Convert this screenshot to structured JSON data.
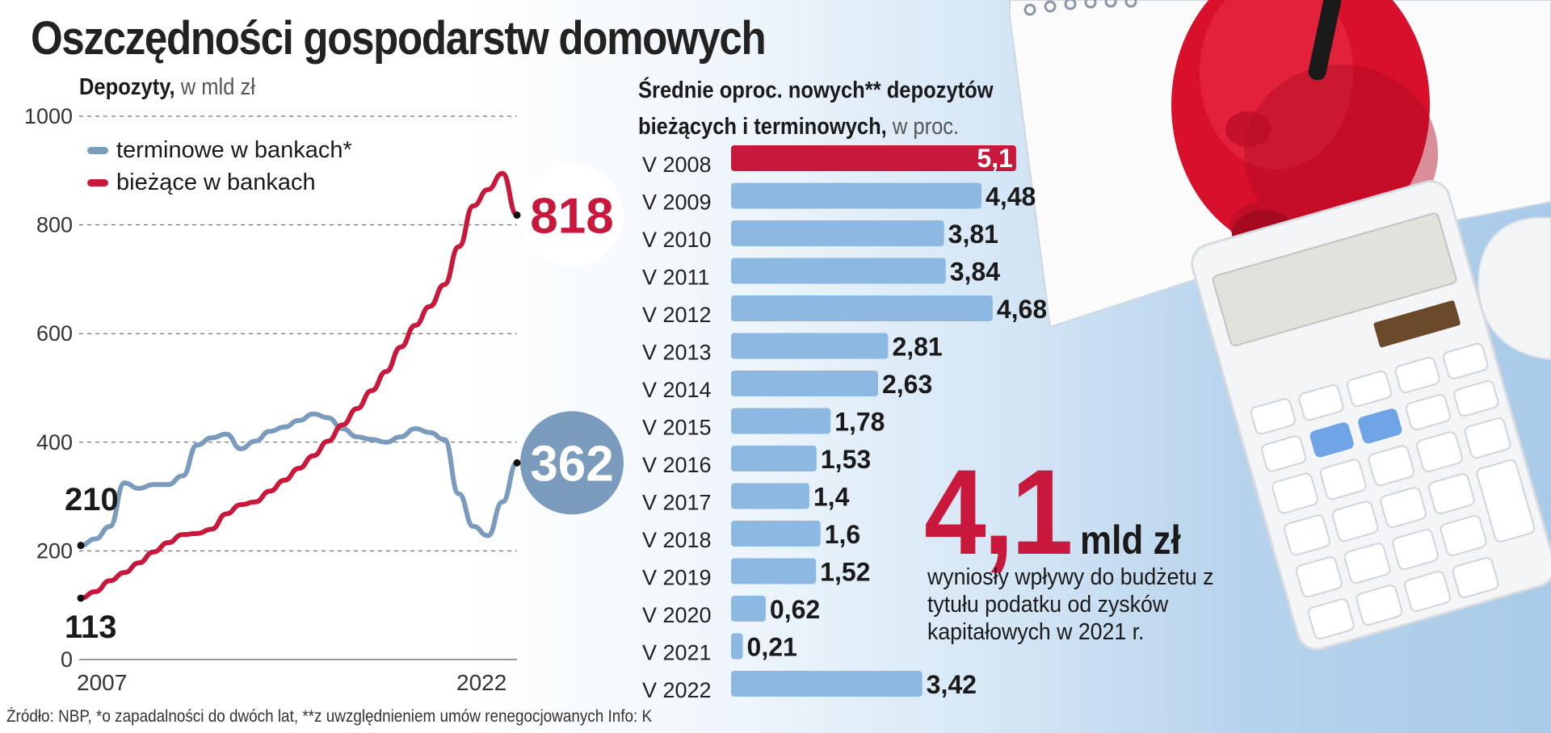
{
  "title": "Oszczędności gospodarstw domowych",
  "line_section": {
    "subtitle_bold": "Depozyty,",
    "subtitle_unit": "w mld zł"
  },
  "bar_section": {
    "title_line1": "Średnie oproc. nowych** depozytów",
    "title_line2_bold": "bieżących i terminowych,",
    "title_line2_unit": "w proc."
  },
  "highlight": {
    "value": "4,1",
    "unit": "mld zł",
    "description": "wyniosły wpływy do budżetu z tytułu podatku od zysków kapitałowych w 2021 r."
  },
  "footer": "Źródło: NBP, *o zapadalności do dwóch lat, **z uwzględnieniem umów renegocjowanych   Info: K",
  "colors": {
    "red": "#c8193d",
    "blue": "#7b9bbd",
    "bar_blue": "#8cb8e2",
    "circle_blue": "#7b9bbd"
  },
  "chart_data": [
    {
      "type": "line",
      "title": "Depozyty",
      "ylabel": "w mld zł",
      "ylim": [
        0,
        1000
      ],
      "yticks": [
        "0",
        "200",
        "400",
        "600",
        "800",
        "1000"
      ],
      "xtick_labels": [
        "2007",
        "2022"
      ],
      "legend_position": "top-left",
      "grid": "horizontal dashed",
      "series": [
        {
          "name": "terminowe w bankach*",
          "color": "#7b9bbd",
          "x": [
            2007.0,
            2007.5,
            2008.0,
            2008.5,
            2009.0,
            2009.5,
            2010.0,
            2010.5,
            2011.0,
            2011.5,
            2012.0,
            2012.5,
            2013.0,
            2013.5,
            2014.0,
            2014.5,
            2015.0,
            2015.5,
            2016.0,
            2016.5,
            2017.0,
            2017.5,
            2018.0,
            2018.5,
            2019.0,
            2019.5,
            2020.0,
            2020.5,
            2021.0,
            2021.5,
            2022.0
          ],
          "values": [
            210,
            222,
            245,
            325,
            315,
            322,
            322,
            338,
            395,
            408,
            415,
            388,
            402,
            420,
            428,
            440,
            452,
            445,
            425,
            410,
            405,
            400,
            410,
            425,
            418,
            405,
            305,
            245,
            228,
            290,
            362
          ],
          "start_label": "210",
          "end_label": "362"
        },
        {
          "name": "bieżące w bankach",
          "color": "#c8193d",
          "x": [
            2007.0,
            2007.5,
            2008.0,
            2008.5,
            2009.0,
            2009.5,
            2010.0,
            2010.5,
            2011.0,
            2011.5,
            2012.0,
            2012.5,
            2013.0,
            2013.5,
            2014.0,
            2014.5,
            2015.0,
            2015.5,
            2016.0,
            2016.5,
            2017.0,
            2017.5,
            2018.0,
            2018.5,
            2019.0,
            2019.5,
            2020.0,
            2020.5,
            2021.0,
            2021.5,
            2022.0
          ],
          "values": [
            113,
            125,
            145,
            160,
            178,
            198,
            215,
            230,
            232,
            240,
            268,
            285,
            290,
            310,
            330,
            352,
            375,
            402,
            432,
            462,
            495,
            530,
            575,
            615,
            650,
            690,
            760,
            835,
            865,
            895,
            818
          ],
          "start_label": "113",
          "end_label": "818"
        }
      ]
    },
    {
      "type": "bar",
      "orientation": "horizontal",
      "title": "Średnie oproc. nowych** depozytów bieżących i terminowych",
      "unit": "w proc.",
      "categories": [
        "V 2008",
        "V 2009",
        "V 2010",
        "V 2011",
        "V 2012",
        "V 2013",
        "V 2014",
        "V 2015",
        "V 2016",
        "V 2017",
        "V 2018",
        "V 2019",
        "V 2020",
        "V 2021",
        "V 2022"
      ],
      "values": [
        5.1,
        4.48,
        3.81,
        3.84,
        4.68,
        2.81,
        2.63,
        1.78,
        1.53,
        1.4,
        1.6,
        1.52,
        0.62,
        0.21,
        3.42
      ],
      "labels": [
        "5,1",
        "4,48",
        "3,81",
        "3,84",
        "4,68",
        "2,81",
        "2,63",
        "1,78",
        "1,53",
        "1,4",
        "1,6",
        "1,52",
        "0,62",
        "0,21",
        "3,42"
      ],
      "highlight_index": 0
    }
  ]
}
